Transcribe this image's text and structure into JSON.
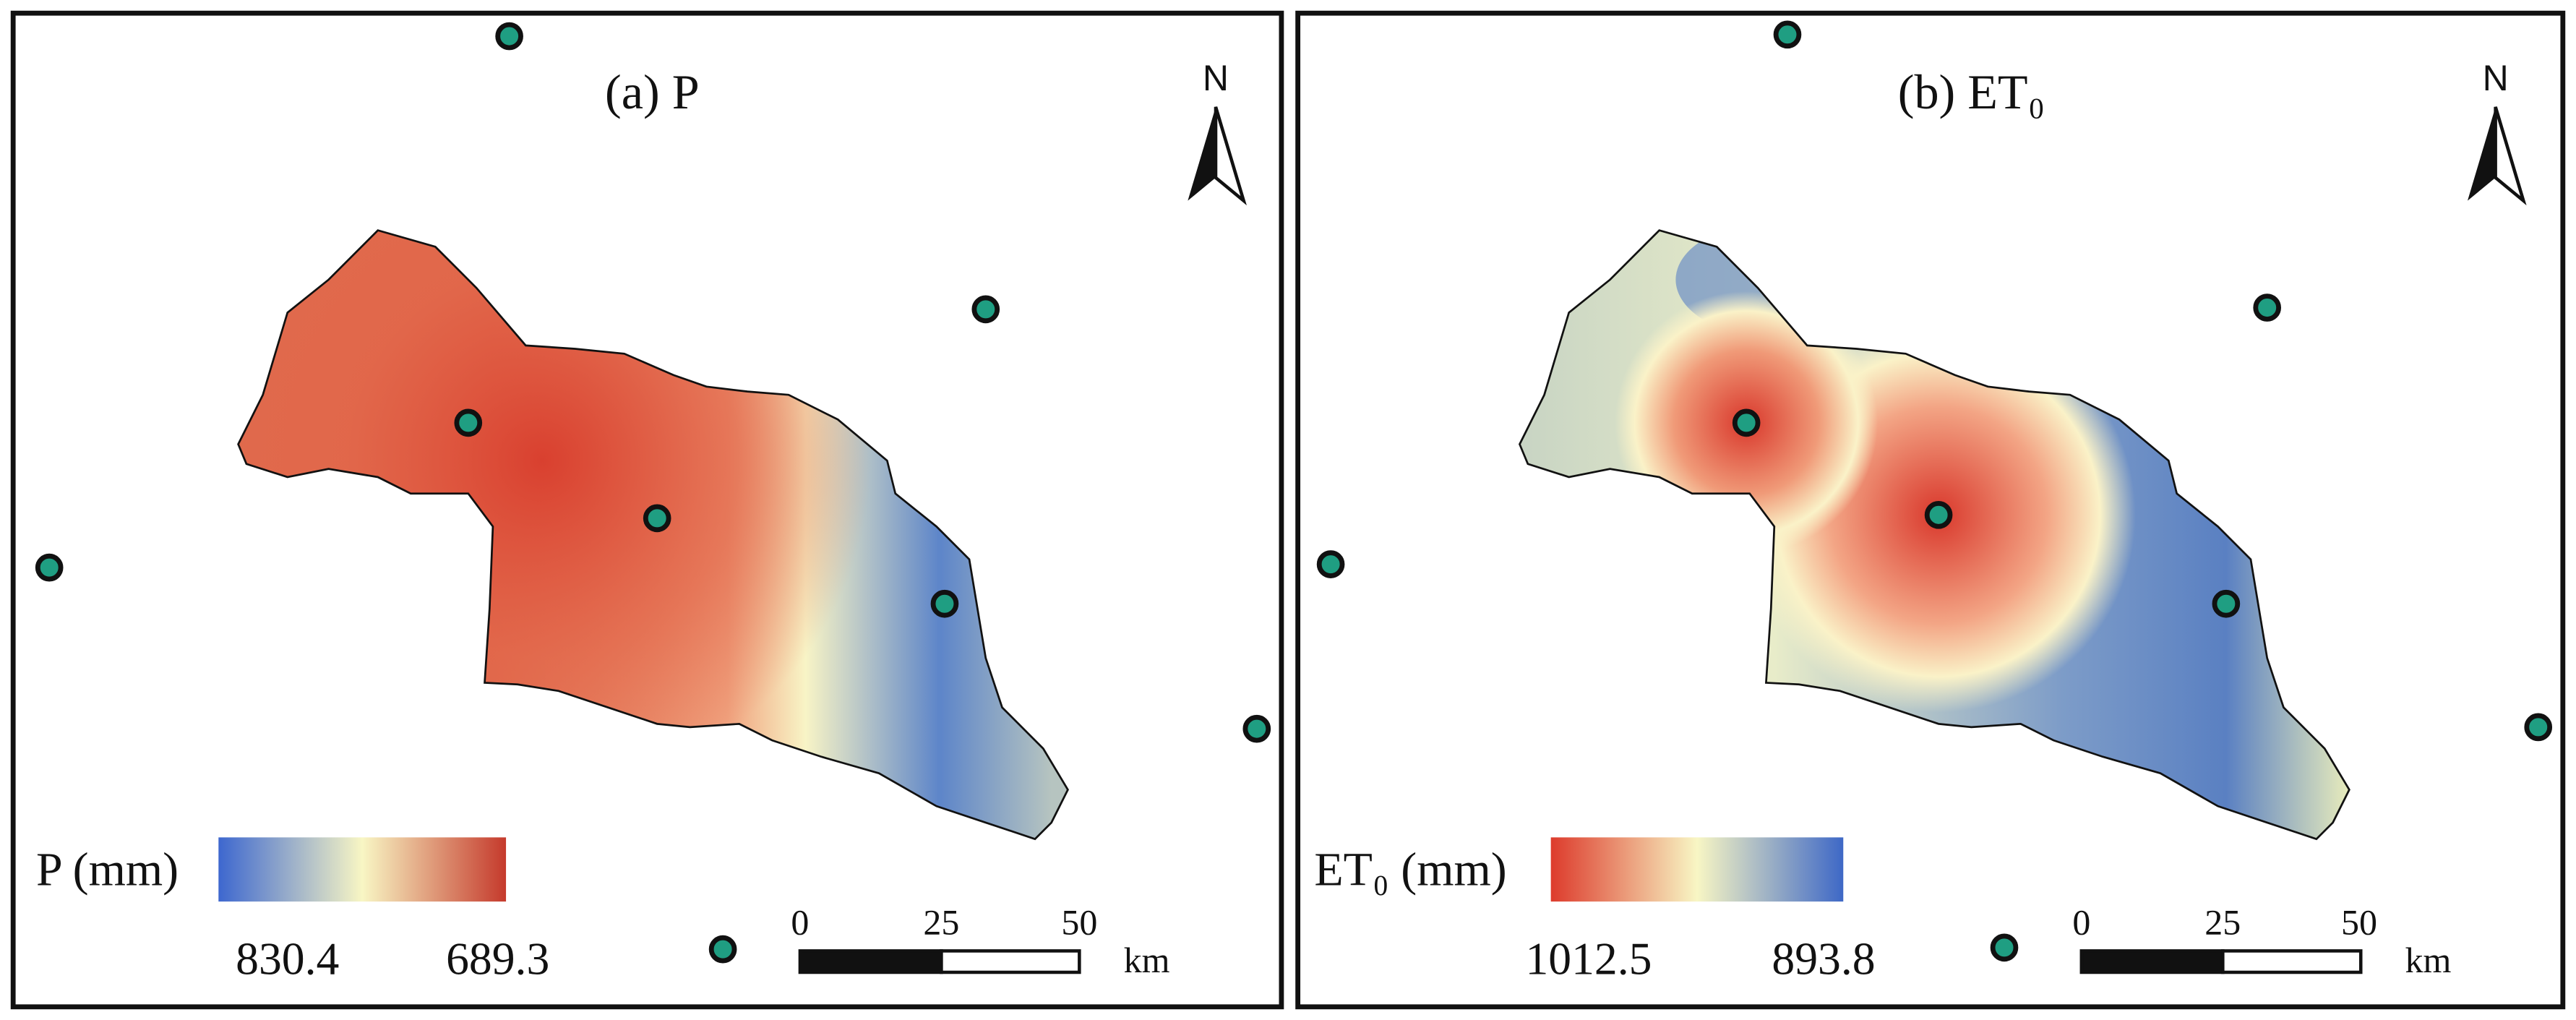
{
  "panels": [
    {
      "title": "(a) P",
      "north": "N",
      "legend": {
        "label": "P (mm)",
        "low": "830.4",
        "high": "689.3"
      },
      "scale_bar": {
        "ticks": [
          "0",
          "25",
          "50"
        ],
        "unit": "km"
      }
    },
    {
      "title": "(b) ET₀",
      "north": "N",
      "legend": {
        "label": "ET₀ (mm)",
        "low": "1012.5",
        "high": "893.8"
      },
      "scale_bar": {
        "ticks": [
          "0",
          "25",
          "50"
        ],
        "unit": "km"
      }
    }
  ]
}
